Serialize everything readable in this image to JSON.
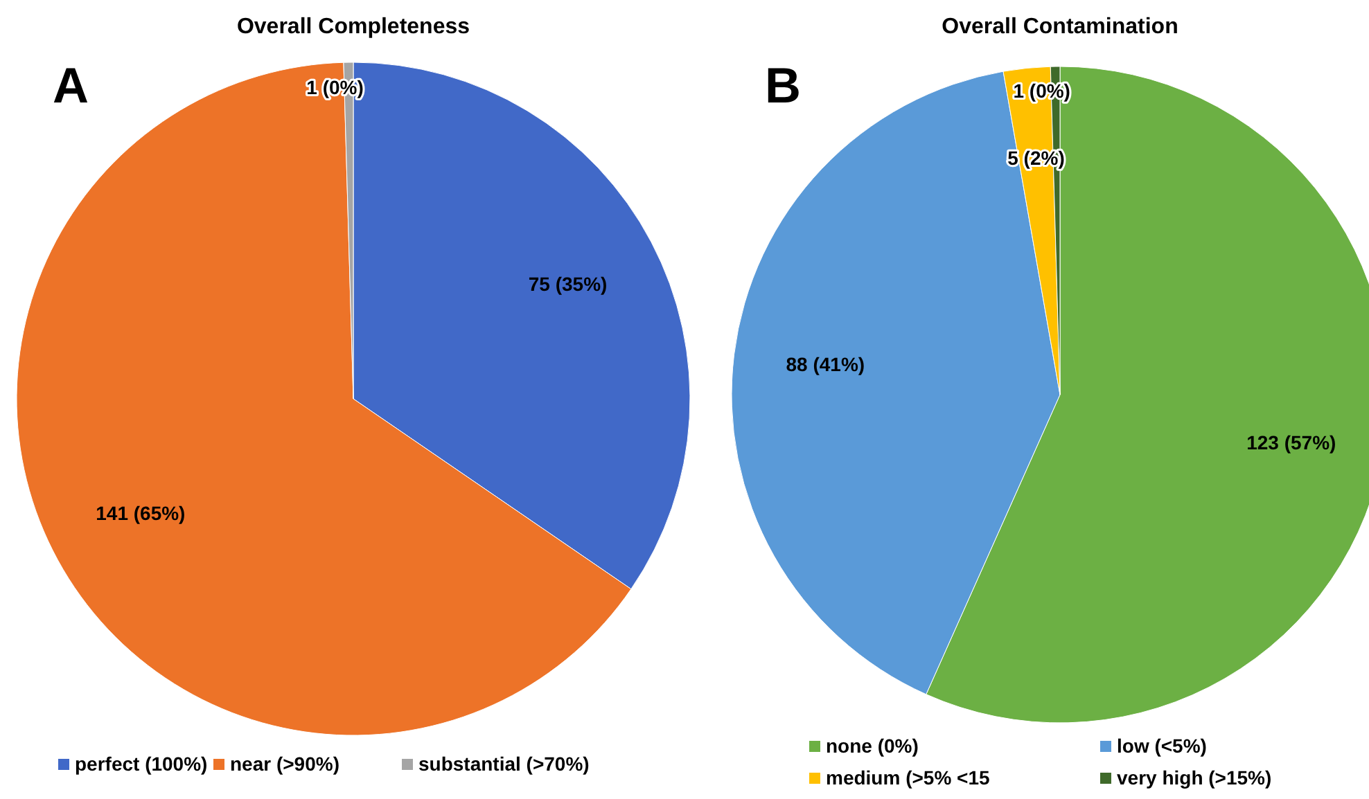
{
  "chart_data": [
    {
      "type": "pie",
      "title": "Overall Completeness",
      "annotations": [
        "A"
      ],
      "categories": [
        "perfect (100%)",
        "near (>90%)",
        "substantial (>70%)"
      ],
      "values": [
        75,
        141,
        1
      ],
      "colors": [
        "#4169c8",
        "#ed7328",
        "#a5a5a5"
      ],
      "value_labels": [
        "75 (35%)",
        "141 (65%)",
        "1 (0%)"
      ],
      "legend": "bottom"
    },
    {
      "type": "pie",
      "title": "Overall Contamination",
      "annotations": [
        "B"
      ],
      "categories": [
        "none (0%)",
        "low (<5%)",
        "medium (>5% <15",
        "very high (>15%)"
      ],
      "values": [
        123,
        88,
        5,
        1
      ],
      "colors": [
        "#6cb044",
        "#5a9ad8",
        "#ffc000",
        "#3f6a2a"
      ],
      "value_labels": [
        "123 (57%)",
        "88 (41%)",
        "5 (2%)",
        "1 (0%)"
      ],
      "legend": "bottom"
    }
  ]
}
